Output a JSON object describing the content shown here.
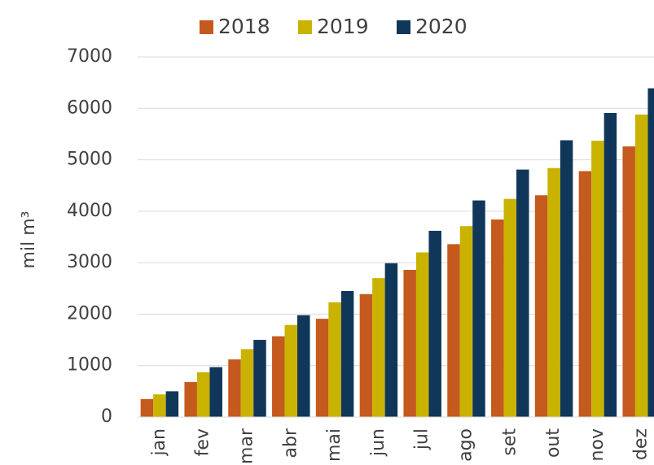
{
  "chart_data": {
    "type": "bar",
    "y_label": "mil m³",
    "categories": [
      "jan",
      "fev",
      "mar",
      "abr",
      "mai",
      "jun",
      "jul",
      "ago",
      "set",
      "out",
      "nov",
      "dez"
    ],
    "series": [
      {
        "name": "2018",
        "color": "#c55a1e",
        "values": [
          350,
          680,
          1120,
          1570,
          1910,
          2390,
          2860,
          3360,
          3840,
          4310,
          4780,
          5260
        ]
      },
      {
        "name": "2019",
        "color": "#c9b300",
        "values": [
          440,
          870,
          1320,
          1790,
          2230,
          2700,
          3200,
          3710,
          4240,
          4840,
          5370,
          5880
        ]
      },
      {
        "name": "2020",
        "color": "#10375a",
        "values": [
          500,
          970,
          1500,
          1980,
          2450,
          2990,
          3620,
          4210,
          4810,
          5380,
          5910,
          6390
        ]
      }
    ],
    "ylim": [
      0,
      7000
    ],
    "yticks": [
      0,
      1000,
      2000,
      3000,
      4000,
      5000,
      6000,
      7000
    ],
    "grid": true,
    "legend": "top"
  }
}
